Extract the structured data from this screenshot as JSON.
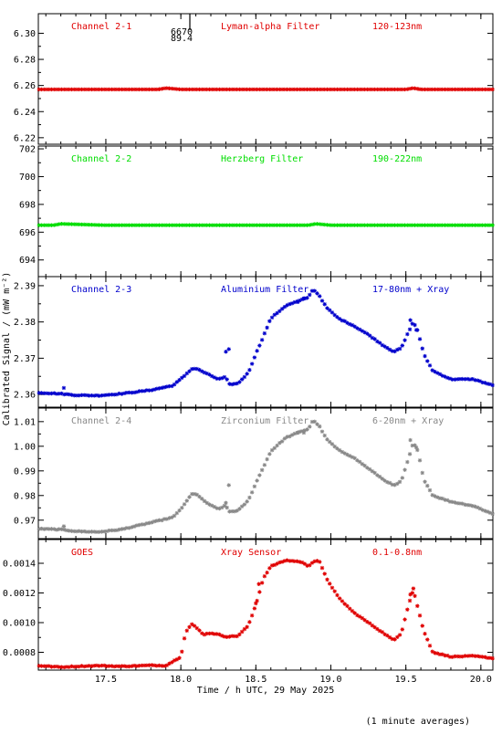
{
  "chart_data": {
    "type": "scatter",
    "ylabel": "Calibrated Signal / (mW m⁻²)",
    "xlabel": "Time / h UTC, 29 May 2025",
    "footnote": "(1 minute averages)",
    "xlim": [
      17.05,
      20.08
    ],
    "xticks": [
      17.5,
      18.0,
      18.5,
      19.0,
      19.5,
      20.0
    ],
    "xtick_labels": [
      "17.5",
      "18.0",
      "18.5",
      "19.0",
      "19.5",
      "20.0"
    ],
    "panels": [
      {
        "channel": "Channel 2-1",
        "filter": "Lyman-alpha Filter",
        "band": "120-123nm",
        "color": "#e00000",
        "ylim": [
          6.215,
          6.315
        ],
        "yticks": [
          6.22,
          6.24,
          6.26,
          6.28,
          6.3
        ],
        "ytick_labels": [
          "6.22",
          "6.24",
          "6.26",
          "6.28",
          "6.30"
        ],
        "outlier_labels": [
          "6670",
          "89.4"
        ],
        "outlier_x": 18.06,
        "series": [
          {
            "x": [
              17.05,
              17.5,
              17.85,
              17.9,
              18.0,
              18.5,
              19.0,
              19.5,
              19.55,
              19.6,
              20.08
            ],
            "y": [
              6.257,
              6.257,
              6.257,
              6.258,
              6.257,
              6.257,
              6.257,
              6.257,
              6.258,
              6.257,
              6.257
            ]
          }
        ]
      },
      {
        "channel": "Channel 2-2",
        "filter": "Herzberg Filter",
        "band": "190-222nm",
        "color": "#00dd00",
        "ylim": [
          692.8,
          702.2
        ],
        "yticks": [
          694,
          696,
          698,
          700,
          702
        ],
        "ytick_labels": [
          "694",
          "696",
          "698",
          "700",
          "702"
        ],
        "series": [
          {
            "x": [
              17.05,
              17.15,
              17.2,
              17.5,
              18.0,
              18.5,
              18.85,
              18.9,
              19.0,
              19.5,
              20.08
            ],
            "y": [
              696.5,
              696.5,
              696.6,
              696.5,
              696.5,
              696.5,
              696.5,
              696.6,
              696.5,
              696.5,
              696.5
            ]
          }
        ]
      },
      {
        "channel": "Channel 2-3",
        "filter": "Aluminium Filter",
        "band": "17-80nm + Xray",
        "color": "#0000cc",
        "ylim": [
          2.3565,
          2.3925
        ],
        "yticks": [
          2.36,
          2.37,
          2.38,
          2.39
        ],
        "ytick_labels": [
          "2.36",
          "2.37",
          "2.38",
          "2.39"
        ],
        "series": [
          {
            "x": [
              17.05,
              17.2,
              17.3,
              17.45,
              17.6,
              17.8,
              17.95,
              18.02,
              18.07,
              18.1,
              18.15,
              18.2,
              18.25,
              18.3,
              18.32,
              18.38,
              18.45,
              18.5,
              18.55,
              18.6,
              18.7,
              18.8,
              18.85,
              18.88,
              18.92,
              18.97,
              19.05,
              19.15,
              19.25,
              19.35,
              19.42,
              19.47,
              19.52,
              19.55,
              19.58,
              19.62,
              19.68,
              19.8,
              19.95,
              20.08
            ],
            "y": [
              2.3605,
              2.3602,
              2.3598,
              2.3597,
              2.3602,
              2.3612,
              2.3625,
              2.365,
              2.367,
              2.3672,
              2.3662,
              2.3652,
              2.3642,
              2.3648,
              2.3628,
              2.363,
              2.366,
              2.3712,
              2.376,
              2.381,
              2.3845,
              2.386,
              2.3868,
              2.389,
              2.3875,
              2.384,
              2.381,
              2.379,
              2.3765,
              2.3735,
              2.3718,
              2.3728,
              2.3775,
              2.38,
              2.3775,
              2.371,
              2.3665,
              2.3642,
              2.3642,
              2.3625
            ]
          }
        ],
        "scatter_points": [
          {
            "x": [
              17.22,
              18.3,
              18.32,
              18.78,
              18.82,
              19.53,
              19.57
            ],
            "y": [
              2.3618,
              2.3718,
              2.3725,
              2.3855,
              2.3865,
              2.3805,
              2.3778
            ]
          }
        ]
      },
      {
        "channel": "Channel 2-4",
        "filter": "Zirconium Filter",
        "band": "6-20nm + Xray",
        "color": "#888888",
        "ylim": [
          0.9625,
          1.0155
        ],
        "yticks": [
          0.97,
          0.98,
          0.99,
          1.0,
          1.01
        ],
        "ytick_labels": [
          "0.97",
          "0.98",
          "0.99",
          "1.00",
          "1.01"
        ],
        "series": [
          {
            "x": [
              17.05,
              17.2,
              17.3,
              17.45,
              17.6,
              17.8,
              17.95,
              18.02,
              18.07,
              18.1,
              18.15,
              18.2,
              18.25,
              18.3,
              18.32,
              18.38,
              18.45,
              18.5,
              18.55,
              18.6,
              18.7,
              18.8,
              18.85,
              18.88,
              18.92,
              18.97,
              19.05,
              19.15,
              19.25,
              19.35,
              19.42,
              19.47,
              19.52,
              19.55,
              19.58,
              19.62,
              19.68,
              19.8,
              19.95,
              20.08
            ],
            "y": [
              0.9665,
              0.9662,
              0.9655,
              0.9652,
              0.9662,
              0.969,
              0.9712,
              0.976,
              0.9805,
              0.9808,
              0.978,
              0.976,
              0.9745,
              0.976,
              0.9735,
              0.9738,
              0.978,
              0.985,
              0.9915,
              0.998,
              1.0035,
              1.006,
              1.007,
              1.0105,
              1.0085,
              1.003,
              0.9985,
              0.9955,
              0.991,
              0.9865,
              0.984,
              0.9858,
              0.9955,
              1.0015,
              0.998,
              0.9865,
              0.98,
              0.9775,
              0.9758,
              0.9725
            ]
          }
        ],
        "scatter_points": [
          {
            "x": [
              17.22,
              18.3,
              18.32,
              18.78,
              18.82,
              19.53,
              19.57
            ],
            "y": [
              0.9675,
              0.977,
              0.9842,
              1.0055,
              1.0055,
              1.0025,
              0.9995
            ]
          }
        ]
      },
      {
        "channel": "GOES",
        "filter": "Xray Sensor",
        "band": "0.1-0.8nm",
        "color": "#e00000",
        "ylim": [
          0.00068,
          0.00156
        ],
        "yticks": [
          0.0008,
          0.001,
          0.0012,
          0.0014
        ],
        "ytick_labels": [
          "0.0008",
          "0.0010",
          "0.0012",
          "0.0014"
        ],
        "series": [
          {
            "x": [
              17.05,
              17.2,
              17.3,
              17.45,
              17.6,
              17.8,
              17.9,
              17.95,
              18.0,
              18.03,
              18.07,
              18.1,
              18.15,
              18.2,
              18.25,
              18.3,
              18.38,
              18.45,
              18.5,
              18.55,
              18.6,
              18.7,
              18.8,
              18.85,
              18.88,
              18.92,
              18.97,
              19.05,
              19.15,
              19.25,
              19.35,
              19.42,
              19.47,
              19.52,
              19.55,
              19.58,
              19.62,
              19.68,
              19.8,
              19.95,
              20.08
            ],
            "y": [
              0.00071,
              0.0007,
              0.000705,
              0.00071,
              0.000705,
              0.000712,
              0.00071,
              0.00074,
              0.00077,
              0.00093,
              0.00099,
              0.00097,
              0.00092,
              0.00093,
              0.00092,
              0.000905,
              0.00091,
              0.00098,
              0.00112,
              0.0013,
              0.00138,
              0.00142,
              0.00141,
              0.00138,
              0.00141,
              0.00142,
              0.0013,
              0.00117,
              0.00107,
              0.001,
              0.00093,
              0.00088,
              0.00093,
              0.00113,
              0.00122,
              0.0011,
              0.00094,
              0.0008,
              0.00077,
              0.000775,
              0.00076
            ]
          }
        ],
        "scatter_points": [
          {
            "x": [
              18.5,
              18.52,
              19.53,
              19.55
            ],
            "y": [
              0.00113,
              0.00126,
              0.00119,
              0.00123
            ]
          }
        ]
      }
    ]
  }
}
